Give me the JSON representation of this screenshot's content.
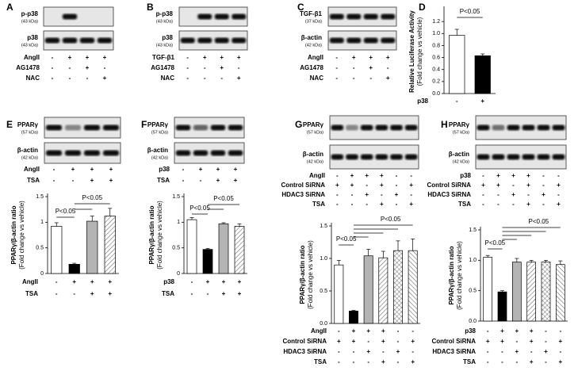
{
  "panels": [
    {
      "letter": "A",
      "blots": [
        {
          "name": "p-p38",
          "size": "(43 kDa)"
        },
        {
          "name": "p38",
          "size": "(43 kDa)"
        }
      ],
      "conditions": [
        {
          "label": "AngII",
          "signs": [
            "-",
            "+",
            "+",
            "+"
          ]
        },
        {
          "label": "AG1478",
          "signs": [
            "-",
            "-",
            "+",
            "-"
          ]
        },
        {
          "label": "NAC",
          "signs": [
            "-",
            "-",
            "-",
            "+"
          ]
        }
      ]
    },
    {
      "letter": "B",
      "blots": [
        {
          "name": "p-p38",
          "size": "(43 kDa)"
        },
        {
          "name": "p38",
          "size": "(43 kDa)"
        }
      ],
      "conditions": [
        {
          "label": "TGF-β1",
          "signs": [
            "-",
            "+",
            "+",
            "+"
          ]
        },
        {
          "label": "AG1478",
          "signs": [
            "-",
            "-",
            "+",
            "-"
          ]
        },
        {
          "label": "NAC",
          "signs": [
            "-",
            "-",
            "-",
            "+"
          ]
        }
      ]
    },
    {
      "letter": "C",
      "blots": [
        {
          "name": "TGF-β1",
          "size": "(37 kDa)"
        },
        {
          "name": "β-actin",
          "size": "(42 kDa)"
        }
      ],
      "conditions": [
        {
          "label": "AngII",
          "signs": [
            "-",
            "+",
            "+",
            "+"
          ]
        },
        {
          "label": "AG1478",
          "signs": [
            "-",
            "-",
            "+",
            "-"
          ]
        },
        {
          "label": "NAC",
          "signs": [
            "-",
            "-",
            "-",
            "+"
          ]
        }
      ]
    },
    {
      "letter": "D"
    },
    {
      "letter": "E",
      "blots": [
        {
          "name": "PPARγ",
          "size": "(57 kDa)"
        },
        {
          "name": "β-actin",
          "size": "(42 kDa)"
        }
      ],
      "conditions": [
        {
          "label": "AngII",
          "signs": [
            "-",
            "+",
            "+",
            "+"
          ]
        },
        {
          "label": "TSA",
          "signs": [
            "-",
            "-",
            "+",
            "+"
          ]
        }
      ]
    },
    {
      "letter": "F",
      "blots": [
        {
          "name": "PPARγ",
          "size": "(57 kDa)"
        },
        {
          "name": "β-actin",
          "size": "(42 kDa)"
        }
      ],
      "conditions": [
        {
          "label": "p38",
          "signs": [
            "-",
            "+",
            "+",
            "+"
          ]
        },
        {
          "label": "TSA",
          "signs": [
            "-",
            "-",
            "+",
            "+"
          ]
        }
      ]
    },
    {
      "letter": "G",
      "blots": [
        {
          "name": "PPARγ",
          "size": "(57 kDa)"
        },
        {
          "name": "β-actin",
          "size": "(42 kDa)"
        }
      ],
      "conditions": [
        {
          "label": "AngII",
          "signs": [
            "-",
            "+",
            "+",
            "+",
            "-",
            "-"
          ]
        },
        {
          "label": "Control SiRNA",
          "signs": [
            "+",
            "+",
            "-",
            "+",
            "-",
            "+"
          ]
        },
        {
          "label": "HDAC3 SiRNA",
          "signs": [
            "-",
            "-",
            "+",
            "-",
            "+",
            "-"
          ]
        },
        {
          "label": "TSA",
          "signs": [
            "-",
            "-",
            "-",
            "+",
            "-",
            "+"
          ]
        }
      ]
    },
    {
      "letter": "H",
      "blots": [
        {
          "name": "PPARγ",
          "size": "(57 kDa)"
        },
        {
          "name": "β-actin",
          "size": "(42 kDa)"
        }
      ],
      "conditions": [
        {
          "label": "p38",
          "signs": [
            "-",
            "+",
            "+",
            "+",
            "-",
            "-"
          ]
        },
        {
          "label": "Control SiRNA",
          "signs": [
            "+",
            "+",
            "-",
            "+",
            "-",
            "+"
          ]
        },
        {
          "label": "HDAC3 SiRNA",
          "signs": [
            "-",
            "-",
            "+",
            "-",
            "+",
            "-"
          ]
        },
        {
          "label": "TSA",
          "signs": [
            "-",
            "-",
            "-",
            "+",
            "-",
            "+"
          ]
        }
      ]
    }
  ],
  "chart_data": [
    {
      "type": "bar",
      "y_label": "Relative Luciferase Activity",
      "y_label_sub": "(Fold change vs vehicle)",
      "values": [
        0.97,
        0.63
      ],
      "errors": [
        0.1,
        0.03
      ],
      "colors": [
        "#ffffff",
        "#000000"
      ],
      "patterns": [
        "none",
        "none"
      ],
      "ylim": [
        0,
        1.4
      ],
      "yticks": [
        {
          "value": 0,
          "label": "0.0"
        },
        0.2,
        0.4,
        0.6,
        0.8,
        {
          "value": 1,
          "label": "1.0"
        },
        1.2
      ],
      "annotations": [
        {
          "text": "P<0.05"
        }
      ],
      "conditions": [
        {
          "label": "p38",
          "signs": [
            "-",
            "+"
          ]
        }
      ]
    },
    {
      "type": "bar",
      "y_label": "PPARγ/β-actin ratio",
      "y_label_sub": "(Fold change vs vehicle)",
      "values": [
        0.92,
        0.18,
        1.02,
        1.12
      ],
      "errors": [
        0.07,
        0.02,
        0.1,
        0.15
      ],
      "colors": [
        "#ffffff",
        "#000000",
        "#b4b4b4",
        "#ffffff"
      ],
      "patterns": [
        "none",
        "none",
        "none",
        "diagonal"
      ],
      "ylim": [
        0,
        1.5
      ],
      "yticks": [
        0,
        0.5,
        1,
        1.5
      ],
      "annotations": [
        {
          "text": "P<0.05"
        },
        {
          "text": "P<0.05"
        }
      ],
      "conditions": [
        {
          "label": "AngII",
          "signs": [
            "-",
            "+",
            "+",
            "+"
          ]
        },
        {
          "label": "TSA",
          "signs": [
            "-",
            "-",
            "+",
            "+"
          ]
        }
      ]
    },
    {
      "type": "bar",
      "y_label": "PPARγ/β-actin ratio",
      "y_label_sub": "(Fold change vs vehicle)",
      "values": [
        1.05,
        0.47,
        0.97,
        0.92
      ],
      "errors": [
        0.04,
        0.02,
        0.02,
        0.05
      ],
      "colors": [
        "#ffffff",
        "#000000",
        "#b4b4b4",
        "#ffffff"
      ],
      "patterns": [
        "none",
        "none",
        "none",
        "diagonal"
      ],
      "ylim": [
        0,
        1.5
      ],
      "yticks": [
        0,
        0.5,
        1,
        1.5
      ],
      "annotations": [
        {
          "text": "P<0.05"
        },
        {
          "text": "P<0.05"
        }
      ],
      "conditions": [
        {
          "label": "p38",
          "signs": [
            "-",
            "+",
            "+",
            "+"
          ]
        },
        {
          "label": "TSA",
          "signs": [
            "-",
            "-",
            "+",
            "+"
          ]
        }
      ]
    },
    {
      "type": "bar",
      "y_label": "PPARγ/β-actin ratio",
      "y_label_sub": "(Fold change vs vehicle)",
      "values": [
        0.9,
        0.19,
        1.04,
        1.01,
        1.12,
        1.12
      ],
      "errors": [
        0.07,
        0.01,
        0.1,
        0.1,
        0.15,
        0.18
      ],
      "colors": [
        "#ffffff",
        "#000000",
        "#b4b4b4",
        "#ffffff",
        "#ffffff",
        "#ffffff"
      ],
      "patterns": [
        "none",
        "none",
        "none",
        "diagonal",
        "cross",
        "back-diagonal"
      ],
      "ylim": [
        0,
        1.5
      ],
      "yticks": [
        {
          "value": 0,
          "label": "0.0"
        },
        0.5,
        {
          "value": 1,
          "label": "1.0"
        },
        1.5
      ],
      "annotations": [
        {
          "text": "P<0.05"
        },
        {
          "text": "P<0.05"
        }
      ],
      "conditions": [
        {
          "label": "AngII",
          "signs": [
            "-",
            "+",
            "+",
            "+",
            "-",
            "-"
          ]
        },
        {
          "label": "Control SiRNA",
          "signs": [
            "+",
            "+",
            "-",
            "+",
            "-",
            "+"
          ]
        },
        {
          "label": "HDAC3 SiRNA",
          "signs": [
            "-",
            "-",
            "+",
            "-",
            "+",
            "-"
          ]
        },
        {
          "label": "TSA",
          "signs": [
            "-",
            "-",
            "-",
            "+",
            "-",
            "+"
          ]
        }
      ]
    },
    {
      "type": "bar",
      "y_label": "PPARγ/β-actin ratio",
      "y_label_sub": "(Fold change vs vehicle)",
      "values": [
        1.05,
        0.48,
        0.97,
        0.97,
        0.97,
        0.93
      ],
      "errors": [
        0.03,
        0.02,
        0.06,
        0.03,
        0.03,
        0.06
      ],
      "colors": [
        "#ffffff",
        "#000000",
        "#b4b4b4",
        "#ffffff",
        "#ffffff",
        "#ffffff"
      ],
      "patterns": [
        "none",
        "none",
        "none",
        "diagonal",
        "cross",
        "back-diagonal"
      ],
      "ylim": [
        0,
        1.5
      ],
      "yticks": [
        {
          "value": 0,
          "label": "0.0"
        },
        0.5,
        {
          "value": 1,
          "label": "1.0"
        },
        1.5
      ],
      "annotations": [
        {
          "text": "P<0.05"
        },
        {
          "text": "P<0.05"
        }
      ],
      "conditions": [
        {
          "label": "p38",
          "signs": [
            "-",
            "+",
            "+",
            "+",
            "-",
            "-"
          ]
        },
        {
          "label": "Control SiRNA",
          "signs": [
            "+",
            "+",
            "-",
            "+",
            "-",
            "+"
          ]
        },
        {
          "label": "HDAC3 SiRNA",
          "signs": [
            "-",
            "-",
            "+",
            "-",
            "+",
            "-"
          ]
        },
        {
          "label": "TSA",
          "signs": [
            "-",
            "-",
            "-",
            "+",
            "-",
            "+"
          ]
        }
      ]
    }
  ]
}
